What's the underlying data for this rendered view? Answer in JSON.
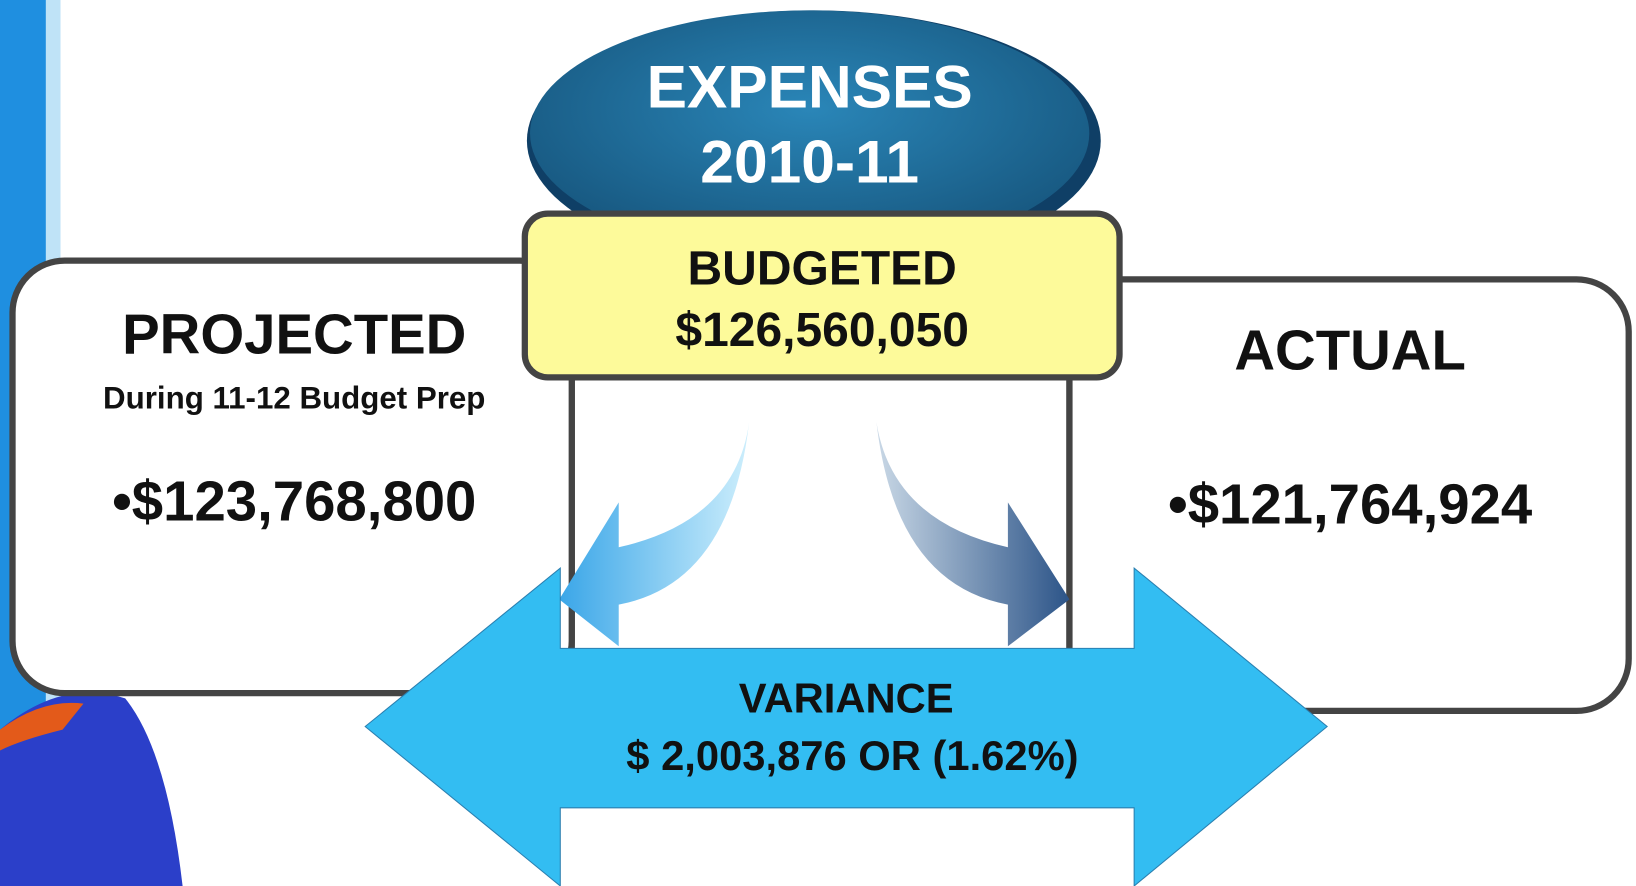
{
  "header": {
    "line1": "EXPENSES",
    "line2": "2010-11"
  },
  "budgeted": {
    "label": "BUDGETED",
    "amount": "$126,560,050"
  },
  "projected": {
    "label": "PROJECTED",
    "note": "During 11-12 Budget Prep",
    "amount": "•$123,768,800"
  },
  "actual": {
    "label": "ACTUAL",
    "amount": "•$121,764,924"
  },
  "variance": {
    "label": "VARIANCE",
    "amount": "$ 2,003,876 OR (1.62%)"
  }
}
